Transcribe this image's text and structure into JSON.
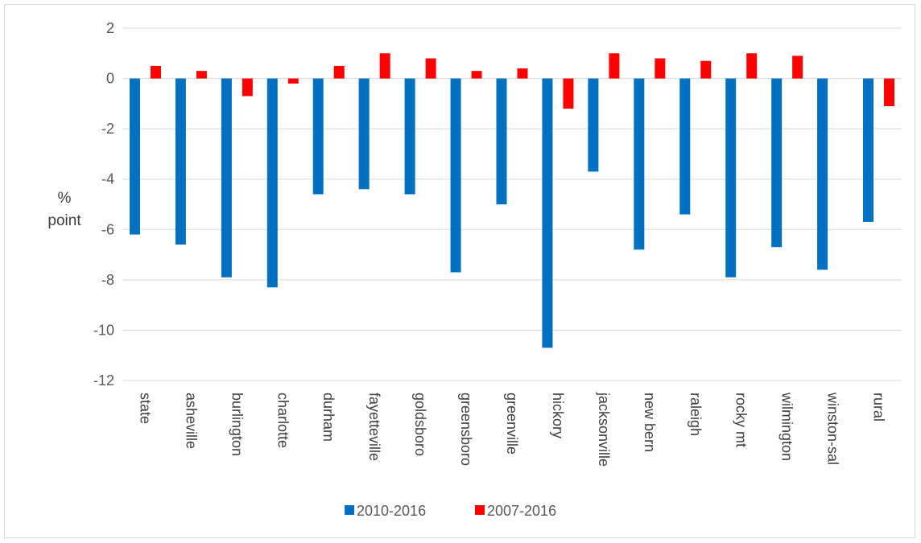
{
  "chart_data": {
    "type": "bar",
    "categories": [
      "state",
      "asheville",
      "burlington",
      "charlotte",
      "durham",
      "fayetteville",
      "goldsboro",
      "greensboro",
      "greenville",
      "hickory",
      "jacksonville",
      "new bern",
      "raleigh",
      "rocky mt",
      "wilmington",
      "winston-sal",
      "rural"
    ],
    "series": [
      {
        "name": "2010-2016",
        "color": "#0070c0",
        "values": [
          -6.2,
          -6.6,
          -7.9,
          -8.3,
          -4.6,
          -4.4,
          -4.6,
          -7.7,
          -5.0,
          -10.7,
          -3.7,
          -6.8,
          -5.4,
          -7.9,
          -6.7,
          -7.6,
          -5.7
        ]
      },
      {
        "name": "2007-2016",
        "color": "#ff0000",
        "values": [
          0.5,
          0.3,
          -0.7,
          -0.2,
          0.5,
          1.0,
          0.8,
          0.3,
          0.4,
          -1.2,
          1.0,
          0.8,
          0.7,
          1.0,
          0.9,
          0.0,
          -1.1
        ]
      }
    ],
    "ylabel_lines": [
      "%",
      "point"
    ],
    "ylim": [
      -12,
      2
    ],
    "yticks": [
      2,
      0,
      -2,
      -4,
      -6,
      -8,
      -10,
      -12
    ],
    "grid": true,
    "legend_position": "bottom"
  }
}
